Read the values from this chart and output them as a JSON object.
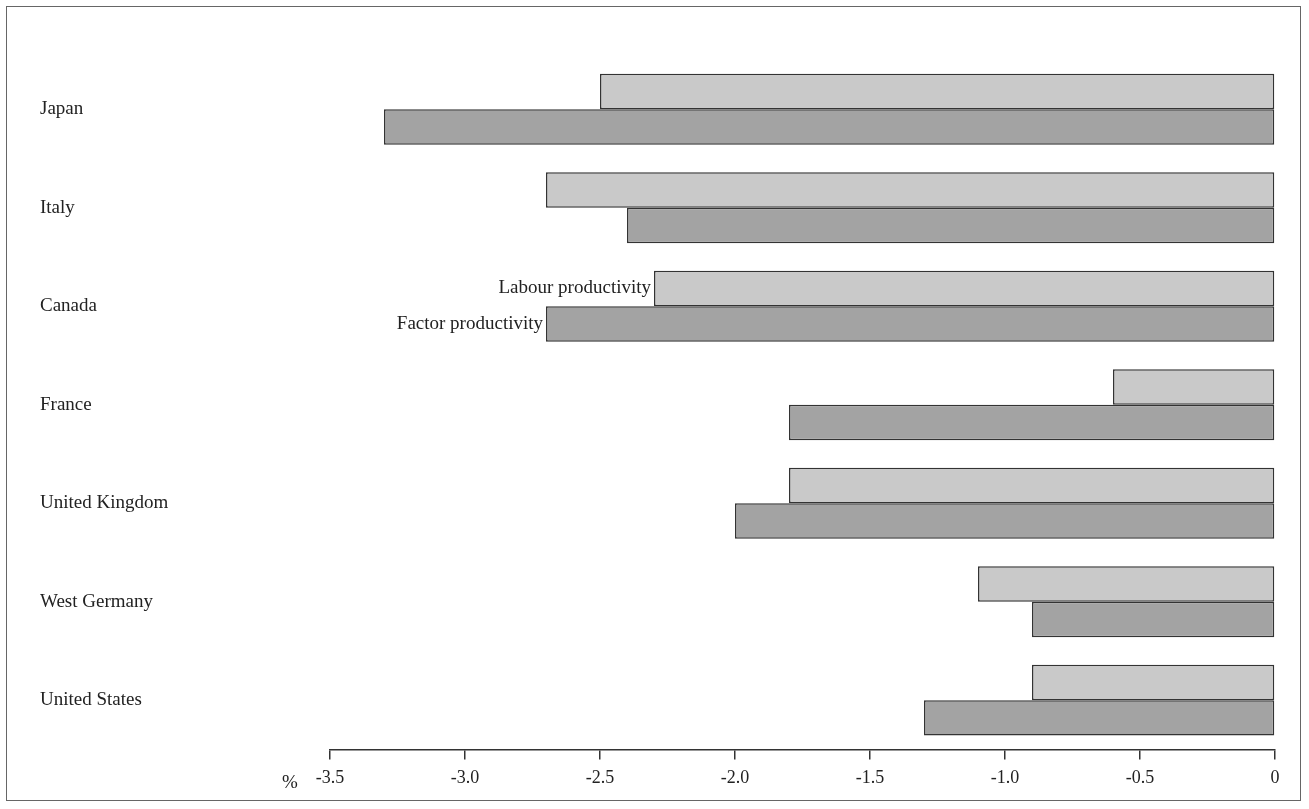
{
  "chart_data": {
    "type": "bar",
    "orientation": "horizontal",
    "xlabel": "%",
    "categories": [
      "Japan",
      "Italy",
      "Canada",
      "France",
      "United Kingdom",
      "West Germany",
      "United States"
    ],
    "series": [
      {
        "name": "Labour productivity",
        "color": "#c9c9c9",
        "values": [
          -2.5,
          -2.7,
          -2.3,
          -0.6,
          -1.8,
          -1.1,
          -0.9
        ]
      },
      {
        "name": "Factor productivity",
        "color": "#a3a3a3",
        "values": [
          -3.3,
          -2.4,
          -2.7,
          -1.8,
          -2.0,
          -0.9,
          -1.3
        ]
      }
    ],
    "xlim": [
      -3.5,
      0
    ],
    "xticks": [
      -3.5,
      {
        "value": -3,
        "label": "-3.0"
      },
      -2.5,
      {
        "value": -2,
        "label": "-2.0"
      },
      -1.5,
      {
        "value": -1,
        "label": "-1.0"
      },
      -0.5,
      0
    ],
    "grid": false,
    "legend": false
  }
}
